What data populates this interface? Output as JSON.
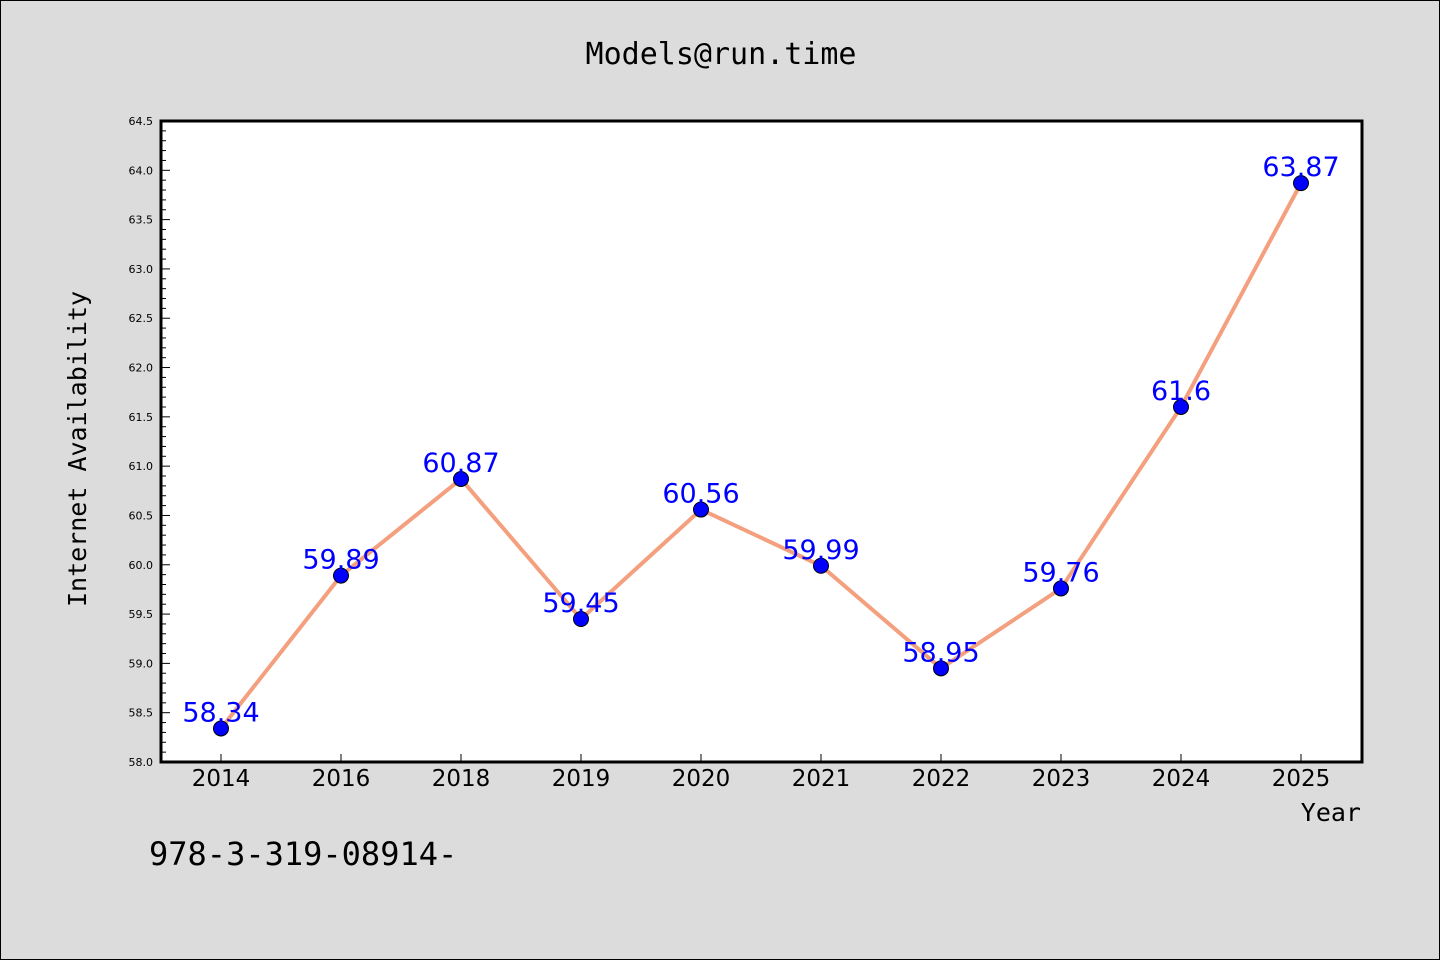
{
  "chart_data": {
    "type": "line",
    "title": "Models@run.time",
    "xlabel": "Year",
    "ylabel": "Internet Availability",
    "categories": [
      "2014",
      "2016",
      "2018",
      "2019",
      "2020",
      "2021",
      "2022",
      "2023",
      "2024",
      "2025"
    ],
    "series": [
      {
        "values": [
          58.34,
          59.89,
          60.87,
          59.45,
          60.56,
          59.99,
          58.95,
          59.76,
          61.6,
          63.87
        ]
      }
    ],
    "data_labels": [
      "58.34",
      "59.89",
      "60.87",
      "59.45",
      "60.56",
      "59.99",
      "58.95",
      "59.76",
      "61.6",
      "63.87"
    ],
    "ylim": [
      58.0,
      64.5
    ],
    "y_ticks": [
      "58.0",
      "58.5",
      "59.0",
      "59.5",
      "60.0",
      "60.5",
      "61.0",
      "61.5",
      "62.0",
      "62.5",
      "63.0",
      "63.5",
      "64.0",
      "64.5"
    ],
    "grid": false,
    "line_color": "#f4a07e",
    "marker_color": "#0000ff",
    "label_color": "#0000ff"
  },
  "footer_text": "978-3-319-08914-"
}
